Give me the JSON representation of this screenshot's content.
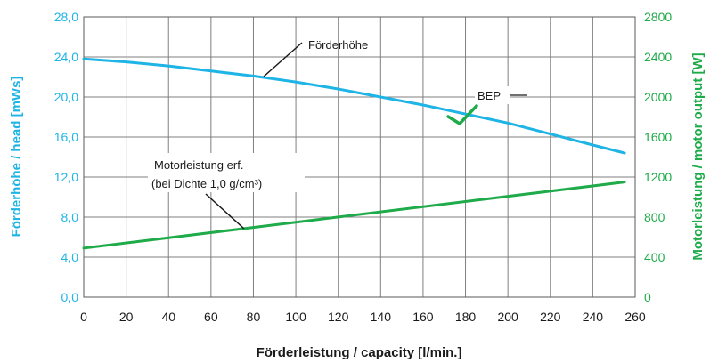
{
  "colors": {
    "head": "#1fb4e6",
    "power": "#1fab4a",
    "bep": "#1fab4a",
    "grid": "#7f7f7f",
    "text": "#1a1a1a"
  },
  "chart_data": {
    "type": "line",
    "xlabel": "Förderleistung / capacity  [l/min.]",
    "ylabel_left": "Förderhöhe / head  [mWs]",
    "ylabel_right": "Motorleistung / motor output [W]",
    "xlim": [
      0,
      260
    ],
    "ylim_left": [
      0,
      28
    ],
    "ylim_right": [
      0,
      2800
    ],
    "grid": true,
    "x_ticks": [
      "0",
      "20",
      "40",
      "60",
      "80",
      "100",
      "120",
      "140",
      "160",
      "180",
      "200",
      "220",
      "240",
      "260"
    ],
    "y_left_ticks": [
      "0,0",
      "4,0",
      "8,0",
      "12,0",
      "16,0",
      "20,0",
      "24,0",
      "28,0"
    ],
    "y_right_ticks": [
      "0",
      "400",
      "800",
      "1200",
      "1600",
      "2000",
      "2400",
      "2800"
    ],
    "series": [
      {
        "name": "Förderhöhe",
        "axis": "left",
        "x": [
          0,
          20,
          40,
          60,
          80,
          100,
          120,
          140,
          160,
          180,
          200,
          220,
          240,
          255
        ],
        "values": [
          23.8,
          23.5,
          23.1,
          22.6,
          22.1,
          21.5,
          20.8,
          20.0,
          19.2,
          18.3,
          17.4,
          16.3,
          15.2,
          14.4
        ]
      },
      {
        "name": "Motorleistung erf.",
        "axis": "right",
        "x": [
          0,
          255
        ],
        "values": [
          490,
          1150
        ]
      }
    ],
    "annotations": {
      "head_label": "Förderhöhe",
      "power_label_line1": "Motorleistung erf.",
      "power_label_line2": "(bei Dichte 1,0 g/cm³)",
      "bep_label": "BEP"
    }
  }
}
